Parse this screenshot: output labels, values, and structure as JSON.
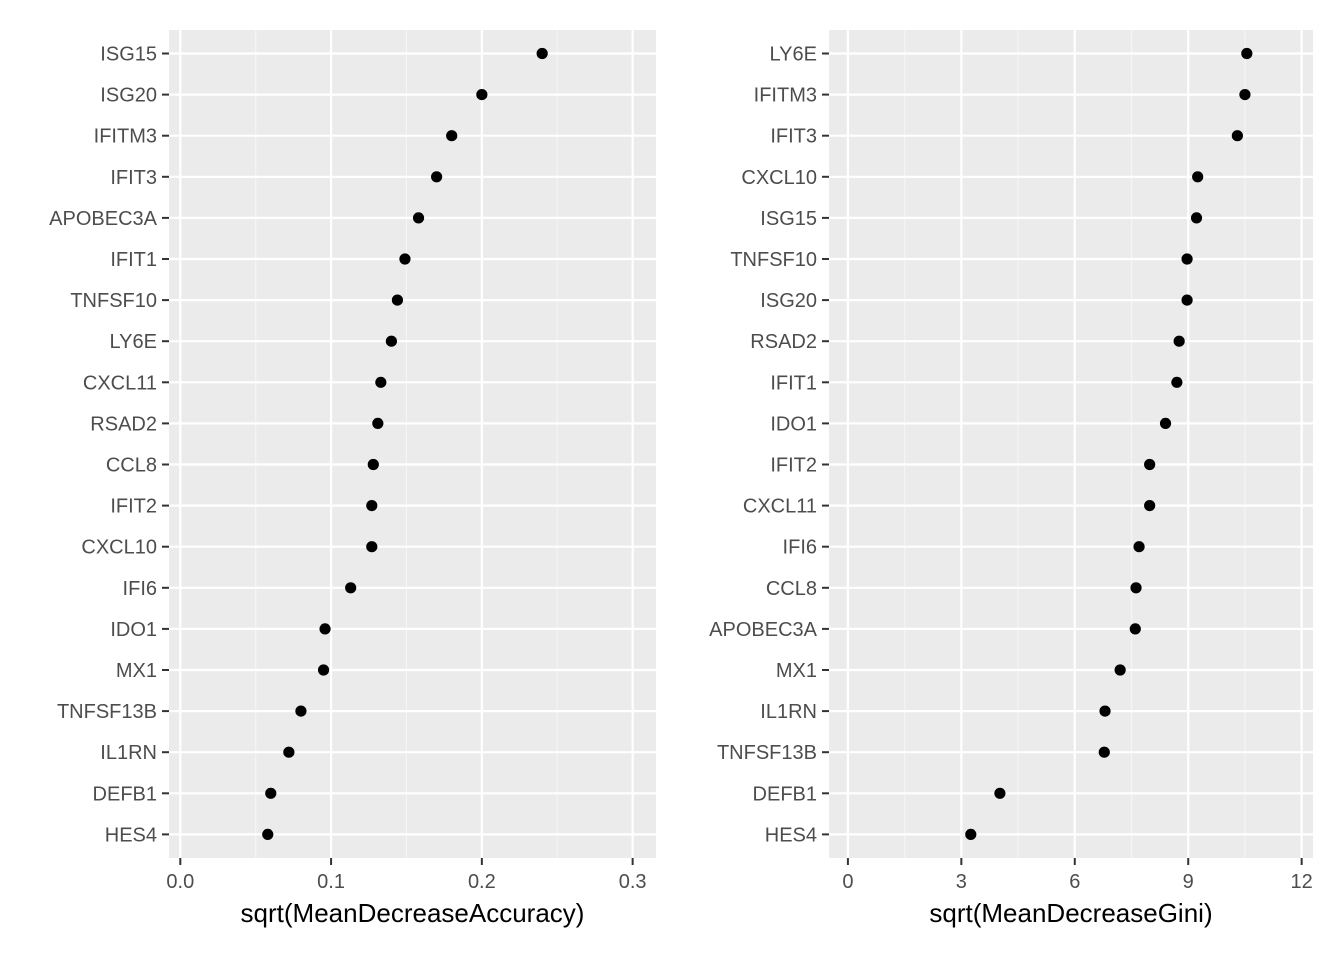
{
  "chart_data": [
    {
      "type": "scatter",
      "title": "",
      "xlabel": "sqrt(MeanDecreaseAccuracy)",
      "ylabel": "",
      "xlim": [
        -0.0075,
        0.3155
      ],
      "x_ticks": [
        0.0,
        0.1,
        0.2,
        0.3
      ],
      "x_tick_labels": [
        "0.0",
        "0.1",
        "0.2",
        "0.3"
      ],
      "grid": true,
      "legend": "none",
      "categories": [
        "ISG15",
        "ISG20",
        "IFITM3",
        "IFIT3",
        "APOBEC3A",
        "IFIT1",
        "TNFSF10",
        "LY6E",
        "CXCL11",
        "RSAD2",
        "CCL8",
        "IFIT2",
        "CXCL10",
        "IFI6",
        "IDO1",
        "MX1",
        "TNFSF13B",
        "IL1RN",
        "DEFB1",
        "HES4"
      ],
      "values": [
        0.24,
        0.2,
        0.18,
        0.17,
        0.158,
        0.149,
        0.144,
        0.14,
        0.133,
        0.131,
        0.128,
        0.127,
        0.127,
        0.113,
        0.096,
        0.095,
        0.08,
        0.072,
        0.06,
        0.058
      ]
    },
    {
      "type": "scatter",
      "title": "",
      "xlabel": "sqrt(MeanDecreaseGini)",
      "ylabel": "",
      "xlim": [
        -0.5,
        12.3
      ],
      "x_ticks": [
        0,
        3,
        6,
        9,
        12
      ],
      "x_tick_labels": [
        "0",
        "3",
        "6",
        "9",
        "12"
      ],
      "grid": true,
      "legend": "none",
      "categories": [
        "LY6E",
        "IFITM3",
        "IFIT3",
        "CXCL10",
        "ISG15",
        "TNFSF10",
        "ISG20",
        "RSAD2",
        "IFIT1",
        "IDO1",
        "IFIT2",
        "CXCL11",
        "IFI6",
        "CCL8",
        "APOBEC3A",
        "MX1",
        "IL1RN",
        "TNFSF13B",
        "DEFB1",
        "HES4"
      ],
      "values": [
        10.55,
        10.5,
        10.3,
        9.25,
        9.22,
        8.97,
        8.97,
        8.76,
        8.7,
        8.4,
        7.98,
        7.98,
        7.7,
        7.62,
        7.6,
        7.2,
        6.8,
        6.78,
        4.02,
        3.25
      ]
    }
  ],
  "colors": {
    "panel_background": "#ebebeb",
    "grid_major": "#ffffff",
    "grid_minor": "#f5f5f5",
    "point": "#000000",
    "tick_label": "#4d4d4d",
    "axis_title": "#000000"
  }
}
